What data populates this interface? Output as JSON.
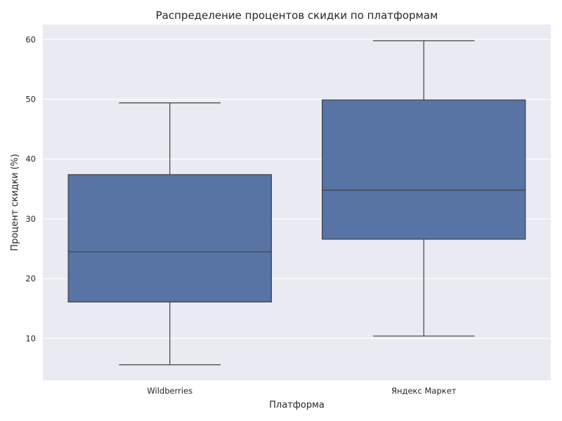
{
  "chart_data": {
    "type": "box",
    "title": "Распределение процентов скидки по платформам",
    "xlabel": "Платформа",
    "ylabel": "Процент скидки (%)",
    "categories": [
      "Wildberries",
      "Яндекс Маркет"
    ],
    "series": [
      {
        "category": "Wildberries",
        "whisker_low": 5.6,
        "q1": 16.1,
        "median": 24.5,
        "q3": 37.4,
        "whisker_high": 49.4
      },
      {
        "category": "Яндекс Маркет",
        "whisker_low": 10.4,
        "q1": 26.6,
        "median": 34.8,
        "q3": 49.9,
        "whisker_high": 59.8
      }
    ],
    "ylim": [
      3,
      62.5
    ],
    "yticks": [
      10,
      20,
      30,
      40,
      50,
      60
    ],
    "grid": true,
    "colors": {
      "box_fill": "#5874a4",
      "plot_background": "#eaeaf2",
      "grid": "#ffffff",
      "lines": "#3f3f3f"
    }
  }
}
